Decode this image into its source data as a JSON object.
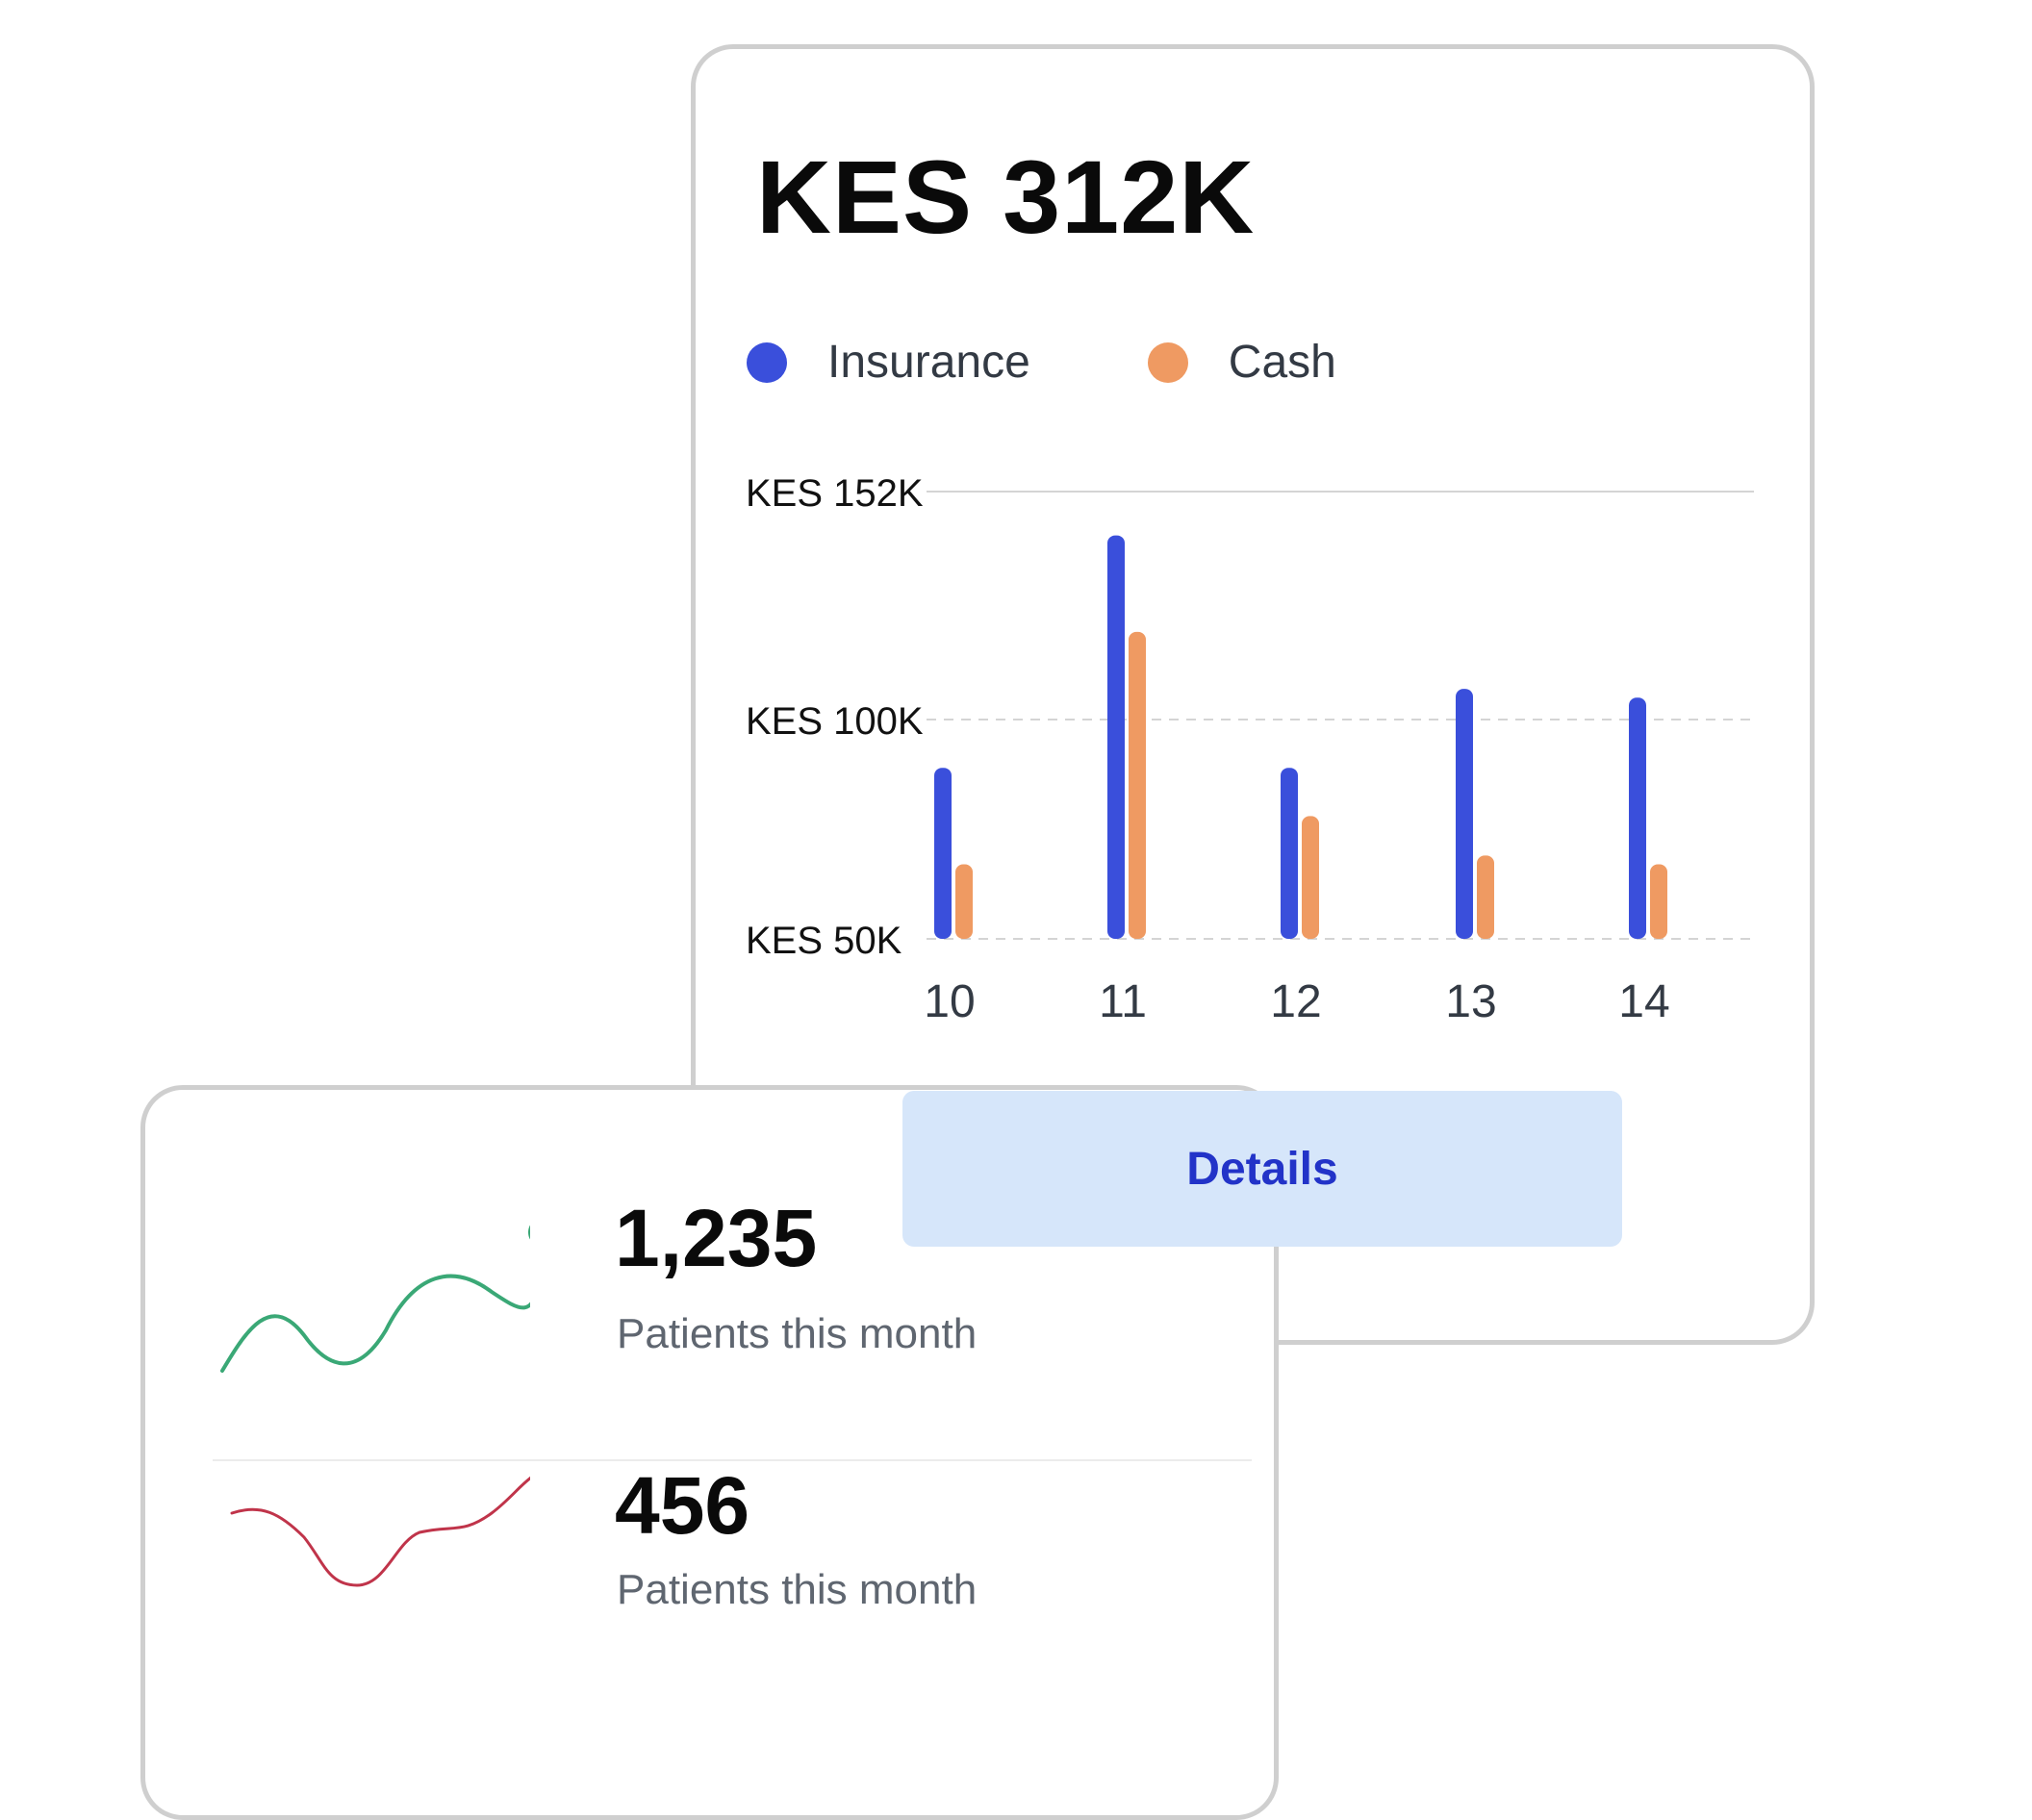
{
  "revenue": {
    "total": "KES 312K",
    "details_label": "Details",
    "legend": [
      {
        "label": "Insurance",
        "color": "#3a4fdb"
      },
      {
        "label": "Cash",
        "color": "#ef9a62"
      }
    ]
  },
  "chart_data": {
    "type": "bar",
    "categories": [
      "10",
      "11",
      "12",
      "13",
      "14"
    ],
    "series": [
      {
        "name": "Insurance",
        "color": "#3a4fdb",
        "values": [
          89,
          142,
          89,
          107,
          105
        ]
      },
      {
        "name": "Cash",
        "color": "#ef9a62",
        "values": [
          67,
          120,
          78,
          69,
          67
        ]
      }
    ],
    "yticks": [
      {
        "value": 50,
        "label": "KES 50K"
      },
      {
        "value": 100,
        "label": "KES 100K"
      },
      {
        "value": 152,
        "label": "KES 152K"
      }
    ],
    "ylim": [
      50,
      152
    ],
    "grid": true,
    "legend_position": "top-left"
  },
  "patients": [
    {
      "value": "1,235",
      "label": "Patients this month",
      "trend_color": "#3aa876"
    },
    {
      "value": "456",
      "label": "Patients this month",
      "trend_color": "#c0344a"
    }
  ]
}
